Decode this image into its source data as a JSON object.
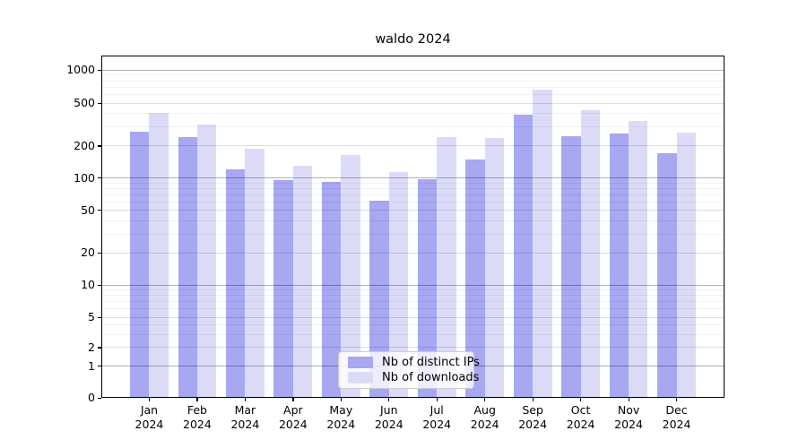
{
  "chart_data": {
    "type": "bar",
    "title": "waldo 2024",
    "yscale": "symlog",
    "grid": "on",
    "legend_position": "lower center",
    "x_tick_year": "2024",
    "categories": [
      "Jan",
      "Feb",
      "Mar",
      "Apr",
      "May",
      "Jun",
      "Jul",
      "Aug",
      "Sep",
      "Oct",
      "Nov",
      "Dec"
    ],
    "series": [
      {
        "name": "Nb of distinct IPs",
        "color": "#a7a7f2",
        "values": [
          270,
          240,
          120,
          95,
          92,
          62,
          98,
          148,
          390,
          245,
          260,
          170
        ]
      },
      {
        "name": "Nb of downloads",
        "color": "#dbdbf8",
        "values": [
          405,
          315,
          190,
          130,
          165,
          113,
          240,
          235,
          660,
          430,
          345,
          268
        ]
      }
    ],
    "yticks": [
      0,
      1,
      2,
      5,
      10,
      20,
      50,
      100,
      200,
      500,
      1000
    ],
    "ylim": [
      0,
      1500
    ],
    "axis_color": "#000000",
    "grid_major_color": "#b3b3b3",
    "grid_mid_color": "#e0e0e0",
    "grid_minor_color": "#f1f1f1"
  }
}
